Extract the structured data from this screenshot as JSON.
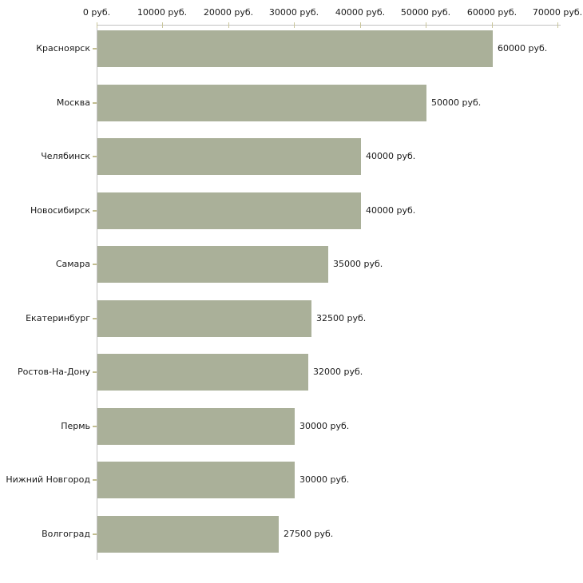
{
  "chart_data": {
    "type": "bar",
    "orientation": "horizontal",
    "title": "",
    "xlabel": "",
    "ylabel": "",
    "categories": [
      "Красноярск",
      "Москва",
      "Челябинск",
      "Новосибирск",
      "Самара",
      "Екатеринбург",
      "Ростов-На-Дону",
      "Пермь",
      "Нижний Новгород",
      "Волгоград"
    ],
    "values": [
      60000,
      50000,
      40000,
      40000,
      35000,
      32500,
      32000,
      30000,
      30000,
      27500
    ],
    "value_labels": [
      "60000 руб.",
      "50000 руб.",
      "40000 руб.",
      "40000 руб.",
      "35000 руб.",
      "32500 руб.",
      "32000 руб.",
      "30000 руб.",
      "30000 руб.",
      "27500 руб."
    ],
    "x_ticks": [
      0,
      10000,
      20000,
      30000,
      40000,
      50000,
      60000,
      70000
    ],
    "x_tick_labels": [
      "0 руб.",
      "10000 руб.",
      "20000 руб.",
      "30000 руб.",
      "40000 руб.",
      "50000 руб.",
      "60000 руб.",
      "70000 руб."
    ],
    "xlim": [
      0,
      70000
    ],
    "grid": false,
    "legend": false,
    "axis_position": "top-left",
    "colors": {
      "bar": "#aab099",
      "axis": "#c2c2c2",
      "tick": "#c9c59a",
      "category_tick": "#c2bd8f",
      "text": "#1a1a1a",
      "background": "#ffffff"
    }
  }
}
